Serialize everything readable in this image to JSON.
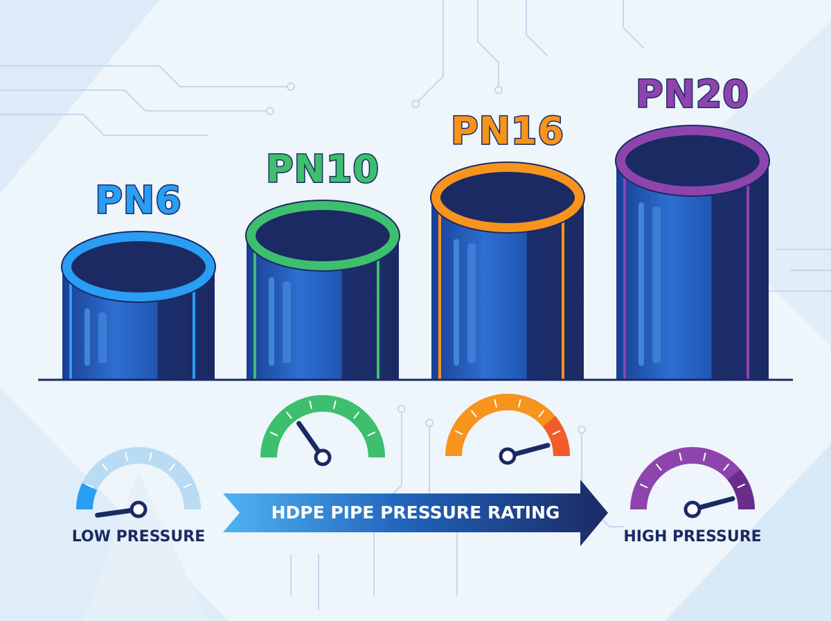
{
  "pipes": [
    {
      "label": "PN6"
    },
    {
      "label": "PN10"
    },
    {
      "label": "PN16"
    },
    {
      "label": "PN20"
    }
  ],
  "banner": {
    "title": "HDPE PIPE PRESSURE RATING"
  },
  "scale": {
    "low": "LOW PRESSURE",
    "high": "HIGH PRESSURE"
  }
}
